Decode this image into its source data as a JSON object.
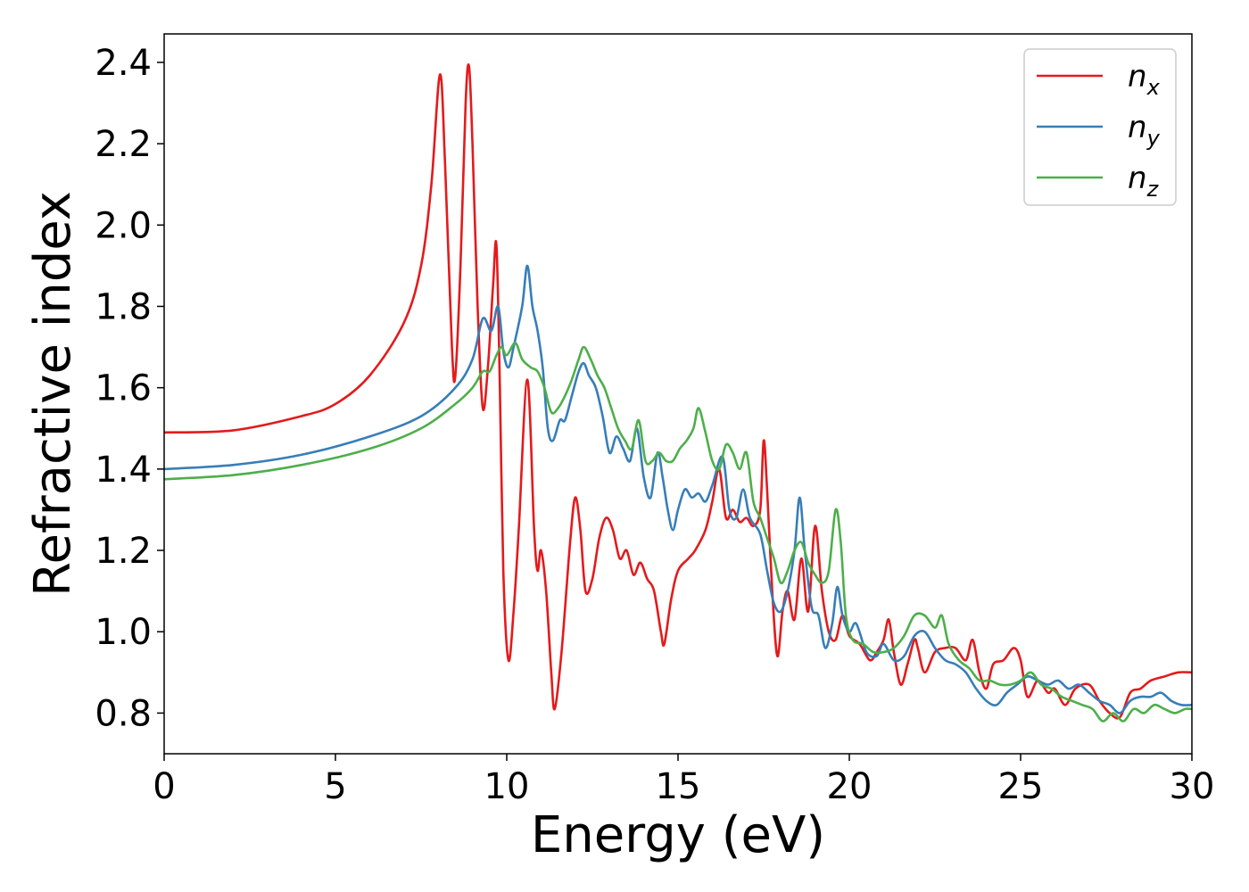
{
  "chart_data": {
    "type": "line",
    "xlabel": "Energy (eV)",
    "ylabel": "Refractive index",
    "xlim": [
      0,
      30
    ],
    "ylim": [
      0.7,
      2.47
    ],
    "xticks": [
      "0",
      "5",
      "10",
      "15",
      "20",
      "25",
      "30"
    ],
    "yticks": [
      "0.8",
      "1.0",
      "1.2",
      "1.4",
      "1.6",
      "1.8",
      "2.0",
      "2.2",
      "2.4"
    ],
    "grid": false,
    "legend_position": "top-right",
    "series": [
      {
        "name": "n",
        "subscript": "x",
        "color": "#e41a1c",
        "points": [
          [
            0,
            1.49
          ],
          [
            2,
            1.495
          ],
          [
            4,
            1.53
          ],
          [
            5,
            1.56
          ],
          [
            6,
            1.63
          ],
          [
            7,
            1.76
          ],
          [
            7.5,
            1.9
          ],
          [
            7.8,
            2.1
          ],
          [
            8.05,
            2.37
          ],
          [
            8.2,
            2.15
          ],
          [
            8.4,
            1.7
          ],
          [
            8.5,
            1.63
          ],
          [
            8.65,
            1.9
          ],
          [
            8.8,
            2.3
          ],
          [
            8.9,
            2.39
          ],
          [
            9.0,
            2.2
          ],
          [
            9.15,
            1.8
          ],
          [
            9.3,
            1.55
          ],
          [
            9.45,
            1.65
          ],
          [
            9.6,
            1.85
          ],
          [
            9.7,
            1.95
          ],
          [
            9.8,
            1.6
          ],
          [
            9.9,
            1.15
          ],
          [
            10.05,
            0.93
          ],
          [
            10.2,
            1.05
          ],
          [
            10.35,
            1.25
          ],
          [
            10.6,
            1.62
          ],
          [
            10.8,
            1.25
          ],
          [
            10.9,
            1.15
          ],
          [
            11.0,
            1.2
          ],
          [
            11.15,
            1.1
          ],
          [
            11.3,
            0.9
          ],
          [
            11.4,
            0.81
          ],
          [
            11.6,
            0.95
          ],
          [
            11.85,
            1.22
          ],
          [
            12.0,
            1.33
          ],
          [
            12.15,
            1.25
          ],
          [
            12.3,
            1.1
          ],
          [
            12.5,
            1.13
          ],
          [
            12.7,
            1.23
          ],
          [
            12.9,
            1.28
          ],
          [
            13.1,
            1.25
          ],
          [
            13.3,
            1.18
          ],
          [
            13.5,
            1.2
          ],
          [
            13.7,
            1.14
          ],
          [
            13.9,
            1.17
          ],
          [
            14.1,
            1.13
          ],
          [
            14.3,
            1.1
          ],
          [
            14.5,
            1.0
          ],
          [
            14.6,
            0.97
          ],
          [
            14.8,
            1.08
          ],
          [
            15.0,
            1.15
          ],
          [
            15.3,
            1.18
          ],
          [
            15.5,
            1.2
          ],
          [
            15.8,
            1.25
          ],
          [
            16.0,
            1.32
          ],
          [
            16.2,
            1.4
          ],
          [
            16.4,
            1.28
          ],
          [
            16.6,
            1.3
          ],
          [
            16.8,
            1.27
          ],
          [
            17.0,
            1.28
          ],
          [
            17.2,
            1.26
          ],
          [
            17.4,
            1.3
          ],
          [
            17.5,
            1.47
          ],
          [
            17.6,
            1.35
          ],
          [
            17.75,
            1.1
          ],
          [
            17.9,
            0.94
          ],
          [
            18.05,
            1.05
          ],
          [
            18.2,
            1.1
          ],
          [
            18.4,
            1.03
          ],
          [
            18.6,
            1.18
          ],
          [
            18.8,
            1.05
          ],
          [
            19.0,
            1.26
          ],
          [
            19.2,
            1.1
          ],
          [
            19.4,
            1.0
          ],
          [
            19.6,
            0.98
          ],
          [
            19.8,
            1.04
          ],
          [
            20.0,
            0.99
          ],
          [
            20.3,
            0.97
          ],
          [
            20.6,
            0.93
          ],
          [
            20.8,
            0.95
          ],
          [
            21.0,
            0.98
          ],
          [
            21.15,
            1.03
          ],
          [
            21.3,
            0.95
          ],
          [
            21.5,
            0.87
          ],
          [
            21.7,
            0.92
          ],
          [
            21.9,
            0.98
          ],
          [
            22.0,
            0.96
          ],
          [
            22.2,
            0.9
          ],
          [
            22.5,
            0.95
          ],
          [
            22.8,
            0.96
          ],
          [
            23.1,
            0.96
          ],
          [
            23.4,
            0.93
          ],
          [
            23.6,
            0.98
          ],
          [
            23.8,
            0.9
          ],
          [
            24.0,
            0.86
          ],
          [
            24.2,
            0.92
          ],
          [
            24.5,
            0.93
          ],
          [
            24.8,
            0.96
          ],
          [
            25.0,
            0.93
          ],
          [
            25.2,
            0.84
          ],
          [
            25.5,
            0.88
          ],
          [
            25.8,
            0.85
          ],
          [
            26.0,
            0.86
          ],
          [
            26.3,
            0.82
          ],
          [
            26.6,
            0.86
          ],
          [
            27.0,
            0.87
          ],
          [
            27.3,
            0.83
          ],
          [
            27.6,
            0.8
          ],
          [
            27.9,
            0.79
          ],
          [
            28.2,
            0.85
          ],
          [
            28.5,
            0.86
          ],
          [
            28.8,
            0.88
          ],
          [
            29.2,
            0.89
          ],
          [
            29.6,
            0.9
          ],
          [
            30,
            0.9
          ]
        ]
      },
      {
        "name": "n",
        "subscript": "y",
        "color": "#377eb8",
        "points": [
          [
            0,
            1.4
          ],
          [
            2,
            1.41
          ],
          [
            4,
            1.435
          ],
          [
            6,
            1.48
          ],
          [
            7.5,
            1.53
          ],
          [
            8.5,
            1.6
          ],
          [
            9.0,
            1.67
          ],
          [
            9.3,
            1.77
          ],
          [
            9.55,
            1.74
          ],
          [
            9.75,
            1.8
          ],
          [
            9.9,
            1.69
          ],
          [
            10.05,
            1.65
          ],
          [
            10.2,
            1.7
          ],
          [
            10.45,
            1.8
          ],
          [
            10.6,
            1.9
          ],
          [
            10.75,
            1.8
          ],
          [
            10.9,
            1.74
          ],
          [
            11.05,
            1.65
          ],
          [
            11.2,
            1.5
          ],
          [
            11.35,
            1.47
          ],
          [
            11.55,
            1.52
          ],
          [
            11.7,
            1.52
          ],
          [
            11.9,
            1.58
          ],
          [
            12.1,
            1.64
          ],
          [
            12.25,
            1.66
          ],
          [
            12.4,
            1.63
          ],
          [
            12.6,
            1.6
          ],
          [
            12.8,
            1.53
          ],
          [
            13.0,
            1.44
          ],
          [
            13.2,
            1.48
          ],
          [
            13.4,
            1.45
          ],
          [
            13.6,
            1.42
          ],
          [
            13.8,
            1.5
          ],
          [
            14.0,
            1.38
          ],
          [
            14.2,
            1.33
          ],
          [
            14.4,
            1.44
          ],
          [
            14.55,
            1.38
          ],
          [
            14.7,
            1.3
          ],
          [
            14.85,
            1.25
          ],
          [
            15.0,
            1.3
          ],
          [
            15.2,
            1.35
          ],
          [
            15.4,
            1.33
          ],
          [
            15.6,
            1.34
          ],
          [
            15.8,
            1.32
          ],
          [
            16.0,
            1.36
          ],
          [
            16.3,
            1.43
          ],
          [
            16.5,
            1.3
          ],
          [
            16.7,
            1.28
          ],
          [
            16.9,
            1.35
          ],
          [
            17.1,
            1.28
          ],
          [
            17.4,
            1.24
          ],
          [
            17.6,
            1.15
          ],
          [
            17.8,
            1.07
          ],
          [
            18.0,
            1.05
          ],
          [
            18.2,
            1.1
          ],
          [
            18.4,
            1.2
          ],
          [
            18.55,
            1.33
          ],
          [
            18.7,
            1.2
          ],
          [
            18.9,
            1.06
          ],
          [
            19.1,
            1.04
          ],
          [
            19.3,
            0.96
          ],
          [
            19.5,
            1.02
          ],
          [
            19.65,
            1.11
          ],
          [
            19.8,
            1.04
          ],
          [
            20.0,
            1.0
          ],
          [
            20.2,
            1.02
          ],
          [
            20.5,
            0.95
          ],
          [
            20.8,
            0.94
          ],
          [
            21.0,
            0.97
          ],
          [
            21.3,
            0.93
          ],
          [
            21.6,
            0.94
          ],
          [
            21.9,
            0.99
          ],
          [
            22.2,
            1.0
          ],
          [
            22.5,
            0.96
          ],
          [
            22.8,
            0.93
          ],
          [
            23.1,
            0.92
          ],
          [
            23.4,
            0.9
          ],
          [
            23.7,
            0.86
          ],
          [
            24.0,
            0.83
          ],
          [
            24.3,
            0.82
          ],
          [
            24.6,
            0.85
          ],
          [
            24.9,
            0.87
          ],
          [
            25.2,
            0.89
          ],
          [
            25.5,
            0.88
          ],
          [
            25.8,
            0.87
          ],
          [
            26.1,
            0.88
          ],
          [
            26.4,
            0.86
          ],
          [
            26.7,
            0.87
          ],
          [
            27.0,
            0.85
          ],
          [
            27.3,
            0.83
          ],
          [
            27.6,
            0.82
          ],
          [
            27.9,
            0.8
          ],
          [
            28.2,
            0.83
          ],
          [
            28.5,
            0.84
          ],
          [
            28.8,
            0.84
          ],
          [
            29.1,
            0.85
          ],
          [
            29.4,
            0.83
          ],
          [
            29.7,
            0.82
          ],
          [
            30,
            0.82
          ]
        ]
      },
      {
        "name": "n",
        "subscript": "z",
        "color": "#4daf4a",
        "points": [
          [
            0,
            1.375
          ],
          [
            2,
            1.385
          ],
          [
            4,
            1.41
          ],
          [
            6,
            1.45
          ],
          [
            7.5,
            1.5
          ],
          [
            8.5,
            1.56
          ],
          [
            9.0,
            1.6
          ],
          [
            9.3,
            1.64
          ],
          [
            9.5,
            1.64
          ],
          [
            9.7,
            1.68
          ],
          [
            9.85,
            1.7
          ],
          [
            10.0,
            1.68
          ],
          [
            10.25,
            1.71
          ],
          [
            10.45,
            1.67
          ],
          [
            10.7,
            1.65
          ],
          [
            10.9,
            1.64
          ],
          [
            11.1,
            1.6
          ],
          [
            11.3,
            1.54
          ],
          [
            11.5,
            1.55
          ],
          [
            11.7,
            1.58
          ],
          [
            11.9,
            1.62
          ],
          [
            12.1,
            1.67
          ],
          [
            12.25,
            1.7
          ],
          [
            12.45,
            1.67
          ],
          [
            12.65,
            1.63
          ],
          [
            12.85,
            1.6
          ],
          [
            13.05,
            1.55
          ],
          [
            13.25,
            1.5
          ],
          [
            13.45,
            1.47
          ],
          [
            13.65,
            1.45
          ],
          [
            13.85,
            1.52
          ],
          [
            14.05,
            1.42
          ],
          [
            14.25,
            1.42
          ],
          [
            14.45,
            1.44
          ],
          [
            14.65,
            1.42
          ],
          [
            14.85,
            1.42
          ],
          [
            15.05,
            1.45
          ],
          [
            15.25,
            1.47
          ],
          [
            15.45,
            1.5
          ],
          [
            15.6,
            1.55
          ],
          [
            15.8,
            1.49
          ],
          [
            16.0,
            1.42
          ],
          [
            16.2,
            1.4
          ],
          [
            16.4,
            1.46
          ],
          [
            16.6,
            1.44
          ],
          [
            16.8,
            1.4
          ],
          [
            17.0,
            1.44
          ],
          [
            17.2,
            1.32
          ],
          [
            17.4,
            1.28
          ],
          [
            17.6,
            1.23
          ],
          [
            17.8,
            1.18
          ],
          [
            18.0,
            1.12
          ],
          [
            18.2,
            1.15
          ],
          [
            18.4,
            1.2
          ],
          [
            18.6,
            1.22
          ],
          [
            18.8,
            1.17
          ],
          [
            19.0,
            1.14
          ],
          [
            19.2,
            1.12
          ],
          [
            19.4,
            1.15
          ],
          [
            19.6,
            1.3
          ],
          [
            19.75,
            1.22
          ],
          [
            19.9,
            1.04
          ],
          [
            20.1,
            0.98
          ],
          [
            20.4,
            0.97
          ],
          [
            20.7,
            0.95
          ],
          [
            21.0,
            0.95
          ],
          [
            21.3,
            0.96
          ],
          [
            21.6,
            0.99
          ],
          [
            21.9,
            1.04
          ],
          [
            22.2,
            1.04
          ],
          [
            22.5,
            1.01
          ],
          [
            22.7,
            1.04
          ],
          [
            22.9,
            0.97
          ],
          [
            23.2,
            0.93
          ],
          [
            23.5,
            0.91
          ],
          [
            23.8,
            0.88
          ],
          [
            24.1,
            0.88
          ],
          [
            24.4,
            0.87
          ],
          [
            24.7,
            0.87
          ],
          [
            25.0,
            0.88
          ],
          [
            25.3,
            0.9
          ],
          [
            25.6,
            0.87
          ],
          [
            25.9,
            0.86
          ],
          [
            26.2,
            0.84
          ],
          [
            26.5,
            0.83
          ],
          [
            26.8,
            0.82
          ],
          [
            27.1,
            0.81
          ],
          [
            27.4,
            0.78
          ],
          [
            27.7,
            0.8
          ],
          [
            28.0,
            0.78
          ],
          [
            28.3,
            0.81
          ],
          [
            28.6,
            0.8
          ],
          [
            28.9,
            0.82
          ],
          [
            29.2,
            0.81
          ],
          [
            29.5,
            0.8
          ],
          [
            29.8,
            0.81
          ],
          [
            30,
            0.81
          ]
        ]
      }
    ]
  }
}
